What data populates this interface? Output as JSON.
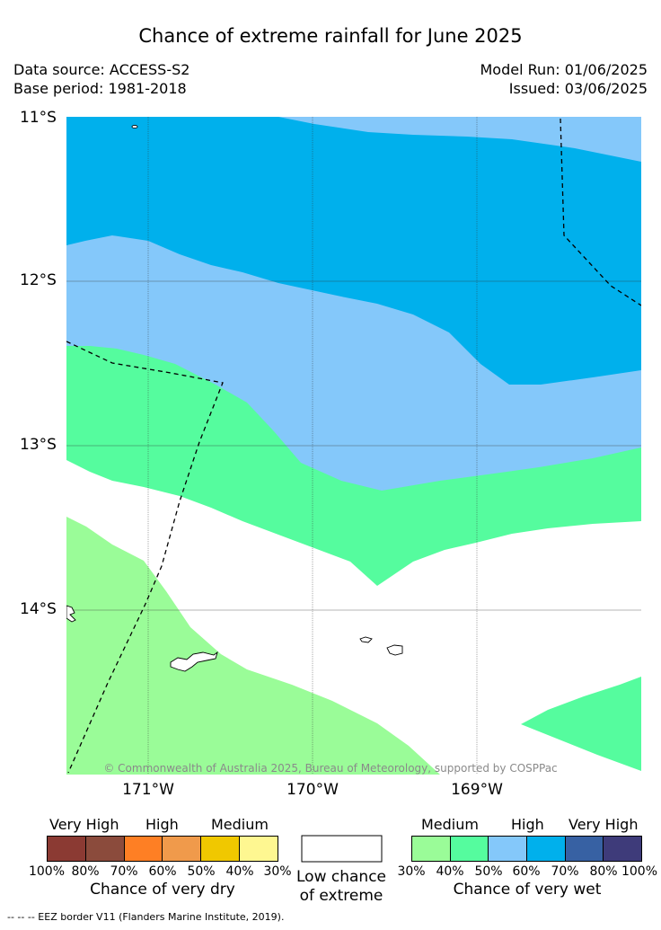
{
  "title": "Chance of extreme rainfall for June 2025",
  "meta": {
    "data_source": "Data source: ACCESS-S2",
    "base_period": "Base period: 1981-2018",
    "model_run": "Model Run: 01/06/2025",
    "issued": "Issued: 03/06/2025"
  },
  "map": {
    "lat_labels": [
      "11°S",
      "12°S",
      "13°S",
      "14°S"
    ],
    "lon_labels": [
      "171°W",
      "170°W",
      "169°W"
    ],
    "copyright": "© Commonwealth of Australia 2025, Bureau of Meteorology, supported by COSPPac",
    "colors": {
      "wet_30_40": "#9afc98",
      "wet_40_50": "#55fc9e",
      "wet_50_60": "#84c8fa",
      "wet_60_70": "#00b0ec",
      "land_outline": "#000000",
      "eez_border": "#000000"
    }
  },
  "legend": {
    "dry": {
      "headers": [
        "Very High",
        "High",
        "Medium"
      ],
      "ticks": [
        "100%",
        "80%",
        "70%",
        "60%",
        "50%",
        "40%",
        "30%"
      ],
      "colors": [
        "#8b3a33",
        "#8b4b3c",
        "#fe7f24",
        "#f09a4b",
        "#f0c800",
        "#fef791"
      ],
      "caption": "Chance of very dry"
    },
    "low": {
      "caption_line1": "Low chance",
      "caption_line2": "of extreme",
      "color": "#ffffff"
    },
    "wet": {
      "headers": [
        "Medium",
        "High",
        "Very High"
      ],
      "ticks": [
        "30%",
        "40%",
        "50%",
        "60%",
        "70%",
        "80%",
        "100%"
      ],
      "colors": [
        "#9afc98",
        "#55fc9e",
        "#84c8fa",
        "#00b0ec",
        "#3761a3",
        "#3e3b7a"
      ],
      "caption": "Chance of very wet"
    }
  },
  "footnote": "--  --  -- EEZ border V11 (Flanders Marine Institute, 2019)."
}
